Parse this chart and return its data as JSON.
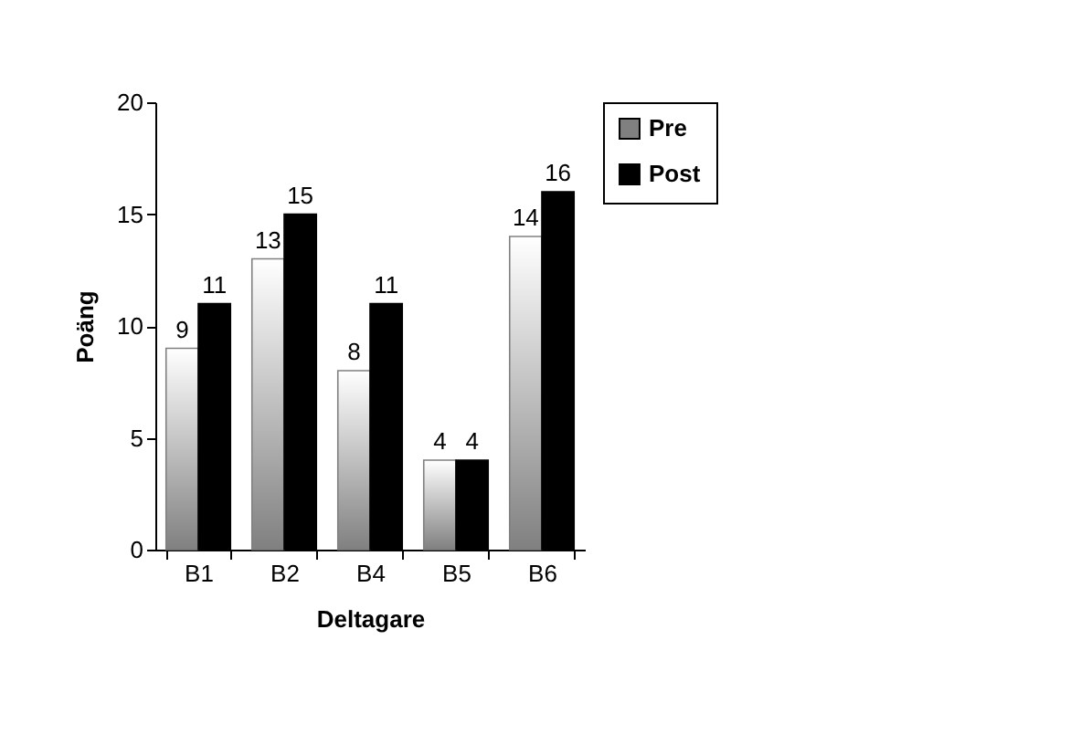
{
  "chart_data": {
    "type": "bar",
    "xlabel": "Deltagare",
    "ylabel": "Poäng",
    "categories": [
      "B1",
      "B2",
      "B4",
      "B5",
      "B6"
    ],
    "series": [
      {
        "name": "Pre",
        "color": "#808080",
        "values": [
          9,
          13,
          8,
          4,
          14
        ]
      },
      {
        "name": "Post",
        "color": "#000000",
        "values": [
          11,
          15,
          11,
          4,
          16
        ]
      }
    ],
    "ylim": [
      0,
      20
    ],
    "yticks": [
      0,
      5,
      10,
      15,
      20
    ],
    "grid": false,
    "legend": "right",
    "data_labels": true
  }
}
